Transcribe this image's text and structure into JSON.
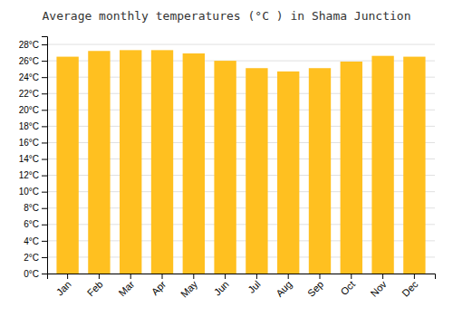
{
  "chart_data": {
    "type": "bar",
    "title": "Average monthly temperatures (°C ) in Shama Junction",
    "categories": [
      "Jan",
      "Feb",
      "Mar",
      "Apr",
      "May",
      "Jun",
      "Jul",
      "Aug",
      "Sep",
      "Oct",
      "Nov",
      "Dec"
    ],
    "values": [
      26.5,
      27.2,
      27.3,
      27.3,
      26.9,
      26.0,
      25.1,
      24.7,
      25.1,
      25.9,
      26.6,
      26.5
    ],
    "color": "#FFC020",
    "ylim": [
      0,
      29
    ],
    "yticks": [
      {
        "value": 0,
        "label": "0°C"
      },
      {
        "value": 2,
        "label": "2°C"
      },
      {
        "value": 4,
        "label": "4°C"
      },
      {
        "value": 6,
        "label": "6°C"
      },
      {
        "value": 8,
        "label": "8°C"
      },
      {
        "value": 10,
        "label": "10°C"
      },
      {
        "value": 12,
        "label": "12°C"
      },
      {
        "value": 14,
        "label": "14°C"
      },
      {
        "value": 16,
        "label": "16°C"
      },
      {
        "value": 18,
        "label": "18°C"
      },
      {
        "value": 20,
        "label": "20°C"
      },
      {
        "value": 22,
        "label": "22°C"
      },
      {
        "value": 24,
        "label": "24°C"
      },
      {
        "value": 26,
        "label": "26°C"
      },
      {
        "value": 28,
        "label": "28°C"
      }
    ],
    "grid": true
  }
}
